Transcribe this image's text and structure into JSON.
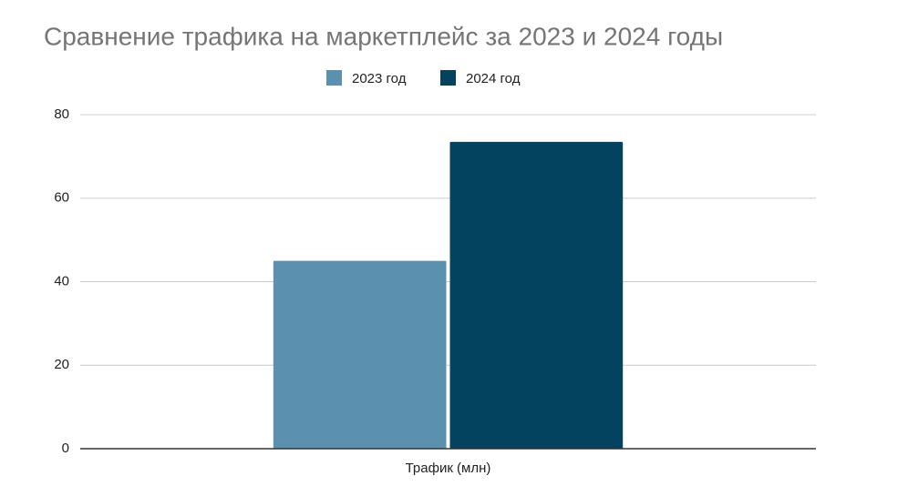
{
  "chart_data": {
    "type": "bar",
    "title": "Сравнение трафика на маркетплейс за 2023 и 2024 годы",
    "categories": [
      "Трафик (млн)"
    ],
    "series": [
      {
        "name": "2023 год",
        "color": "#5b91ae",
        "values": [
          45
        ]
      },
      {
        "name": "2024 год",
        "color": "#03435f",
        "values": [
          73.5
        ]
      }
    ],
    "ylim": [
      0,
      80
    ],
    "yticks": [
      0,
      20,
      40,
      60,
      80
    ],
    "grid": true,
    "legend": "top"
  }
}
